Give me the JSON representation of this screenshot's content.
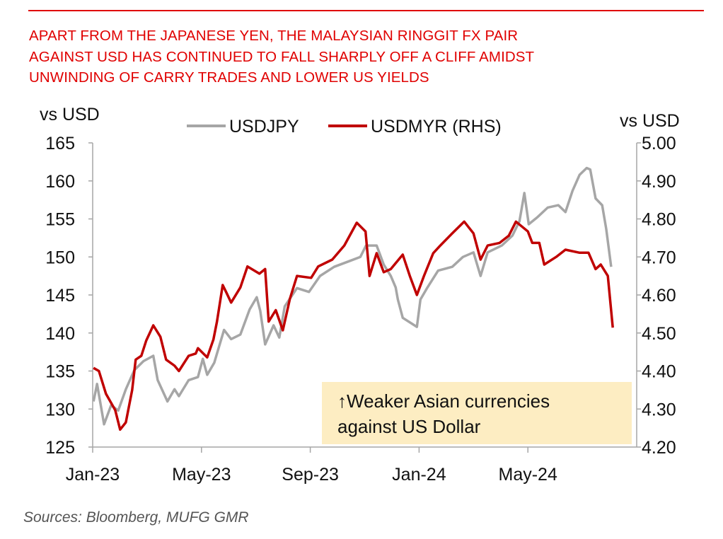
{
  "title_lines": [
    "APART FROM THE JAPANESE YEN, THE MALAYSIAN RINGGIT FX PAIR",
    "AGAINST USD HAS CONTINUED TO FALL SHARPLY OFF A CLIFF AMIDST",
    "UNWINDING OF CARRY TRADES AND LOWER US YIELDS"
  ],
  "source": "Sources:  Bloomberg, MUFG GMR",
  "annotation": [
    "↑Weaker Asian currencies",
    "against US Dollar"
  ],
  "colors": {
    "title": "#e00000",
    "usdjpy": "#a6a6a6",
    "usdmyr": "#c00000",
    "note_bg": "#fdedc2"
  },
  "chart_data": {
    "type": "line",
    "x_unit": "months since Jan-23",
    "xlim": [
      0,
      20
    ],
    "x_ticks": [
      {
        "x": 0,
        "label": "Jan-23"
      },
      {
        "x": 4,
        "label": "May-23"
      },
      {
        "x": 8,
        "label": "Sep-23"
      },
      {
        "x": 12,
        "label": "Jan-24"
      },
      {
        "x": 16,
        "label": "May-24"
      }
    ],
    "ylabel_left": "vs USD",
    "ylabel_right": "vs USD",
    "ylim_left": [
      125,
      165
    ],
    "ylim_right": [
      4.2,
      5.0
    ],
    "yticks_left": [
      "165",
      "160",
      "155",
      "150",
      "145",
      "140",
      "135",
      "130",
      "125"
    ],
    "yticks_right": [
      "5.00",
      "4.90",
      "4.80",
      "4.70",
      "4.60",
      "4.50",
      "4.40",
      "4.30",
      "4.20"
    ],
    "legend": {
      "placement": "top-center",
      "entries": [
        "USDJPY",
        "USDMYR (RHS)"
      ]
    },
    "grid": false,
    "series": [
      {
        "name": "USDJPY",
        "axis": "left",
        "points": [
          [
            0.03,
            131
          ],
          [
            0.16,
            133.3
          ],
          [
            0.42,
            128
          ],
          [
            0.68,
            130.5
          ],
          [
            0.94,
            129.8
          ],
          [
            1.22,
            132.6
          ],
          [
            1.53,
            135.1
          ],
          [
            1.87,
            136.3
          ],
          [
            2.23,
            137
          ],
          [
            2.39,
            133.8
          ],
          [
            2.75,
            131
          ],
          [
            3.01,
            132.6
          ],
          [
            3.17,
            131.7
          ],
          [
            3.53,
            133.8
          ],
          [
            3.87,
            134.2
          ],
          [
            4.05,
            136.6
          ],
          [
            4.21,
            134.5
          ],
          [
            4.47,
            136.1
          ],
          [
            4.83,
            140.4
          ],
          [
            5.09,
            139.2
          ],
          [
            5.43,
            139.8
          ],
          [
            5.77,
            143.1
          ],
          [
            6.03,
            144.7
          ],
          [
            6.16,
            142.9
          ],
          [
            6.34,
            138.5
          ],
          [
            6.65,
            141
          ],
          [
            6.86,
            139.4
          ],
          [
            7.06,
            143.5
          ],
          [
            7.51,
            145.9
          ],
          [
            7.95,
            145.4
          ],
          [
            8.36,
            147.5
          ],
          [
            8.88,
            148.7
          ],
          [
            9.4,
            149.4
          ],
          [
            9.84,
            150
          ],
          [
            10.05,
            151.5
          ],
          [
            10.44,
            151.5
          ],
          [
            10.7,
            149
          ],
          [
            10.96,
            147.5
          ],
          [
            11.14,
            146
          ],
          [
            11.22,
            144.4
          ],
          [
            11.4,
            142
          ],
          [
            11.92,
            140.8
          ],
          [
            12.05,
            144.4
          ],
          [
            12.31,
            146
          ],
          [
            12.7,
            148.2
          ],
          [
            13.22,
            148.7
          ],
          [
            13.61,
            150
          ],
          [
            14.0,
            150.6
          ],
          [
            14.26,
            147.5
          ],
          [
            14.52,
            150.6
          ],
          [
            15.04,
            151.5
          ],
          [
            15.43,
            152.8
          ],
          [
            15.69,
            154.7
          ],
          [
            15.87,
            158.4
          ],
          [
            16.03,
            154.3
          ],
          [
            16.34,
            155.2
          ],
          [
            16.73,
            156.5
          ],
          [
            17.12,
            156.8
          ],
          [
            17.38,
            155.9
          ],
          [
            17.64,
            158.7
          ],
          [
            17.9,
            160.8
          ],
          [
            18.16,
            161.7
          ],
          [
            18.29,
            161.5
          ],
          [
            18.49,
            157.7
          ],
          [
            18.73,
            156.8
          ],
          [
            18.88,
            153.7
          ],
          [
            19.06,
            148.7
          ]
        ]
      },
      {
        "name": "USDMYR (RHS)",
        "axis": "right",
        "points": [
          [
            0.03,
            4.408
          ],
          [
            0.23,
            4.4
          ],
          [
            0.49,
            4.34
          ],
          [
            0.83,
            4.297
          ],
          [
            1.01,
            4.246
          ],
          [
            1.22,
            4.265
          ],
          [
            1.45,
            4.35
          ],
          [
            1.58,
            4.43
          ],
          [
            1.79,
            4.44
          ],
          [
            1.97,
            4.48
          ],
          [
            2.23,
            4.52
          ],
          [
            2.49,
            4.49
          ],
          [
            2.7,
            4.43
          ],
          [
            3.01,
            4.414
          ],
          [
            3.17,
            4.4
          ],
          [
            3.53,
            4.44
          ],
          [
            3.79,
            4.446
          ],
          [
            3.87,
            4.46
          ],
          [
            4.21,
            4.436
          ],
          [
            4.44,
            4.483
          ],
          [
            4.57,
            4.53
          ],
          [
            4.78,
            4.626
          ],
          [
            4.91,
            4.607
          ],
          [
            5.09,
            4.58
          ],
          [
            5.43,
            4.62
          ],
          [
            5.69,
            4.675
          ],
          [
            6.13,
            4.656
          ],
          [
            6.34,
            4.668
          ],
          [
            6.47,
            4.53
          ],
          [
            6.73,
            4.56
          ],
          [
            6.99,
            4.507
          ],
          [
            7.25,
            4.59
          ],
          [
            7.51,
            4.65
          ],
          [
            8.03,
            4.645
          ],
          [
            8.29,
            4.675
          ],
          [
            8.81,
            4.693
          ],
          [
            9.25,
            4.73
          ],
          [
            9.71,
            4.79
          ],
          [
            10.03,
            4.767
          ],
          [
            10.18,
            4.65
          ],
          [
            10.44,
            4.71
          ],
          [
            10.7,
            4.66
          ],
          [
            10.96,
            4.668
          ],
          [
            11.4,
            4.706
          ],
          [
            11.66,
            4.65
          ],
          [
            11.92,
            4.6
          ],
          [
            12.18,
            4.65
          ],
          [
            12.52,
            4.71
          ],
          [
            12.78,
            4.73
          ],
          [
            13.22,
            4.762
          ],
          [
            13.66,
            4.793
          ],
          [
            14.0,
            4.762
          ],
          [
            14.26,
            4.693
          ],
          [
            14.52,
            4.73
          ],
          [
            14.96,
            4.737
          ],
          [
            15.3,
            4.756
          ],
          [
            15.56,
            4.793
          ],
          [
            16.0,
            4.767
          ],
          [
            16.16,
            4.737
          ],
          [
            16.42,
            4.737
          ],
          [
            16.6,
            4.68
          ],
          [
            17.04,
            4.7
          ],
          [
            17.38,
            4.719
          ],
          [
            17.9,
            4.711
          ],
          [
            18.23,
            4.711
          ],
          [
            18.49,
            4.668
          ],
          [
            18.68,
            4.68
          ],
          [
            18.94,
            4.65
          ],
          [
            19.12,
            4.514
          ]
        ]
      }
    ]
  }
}
